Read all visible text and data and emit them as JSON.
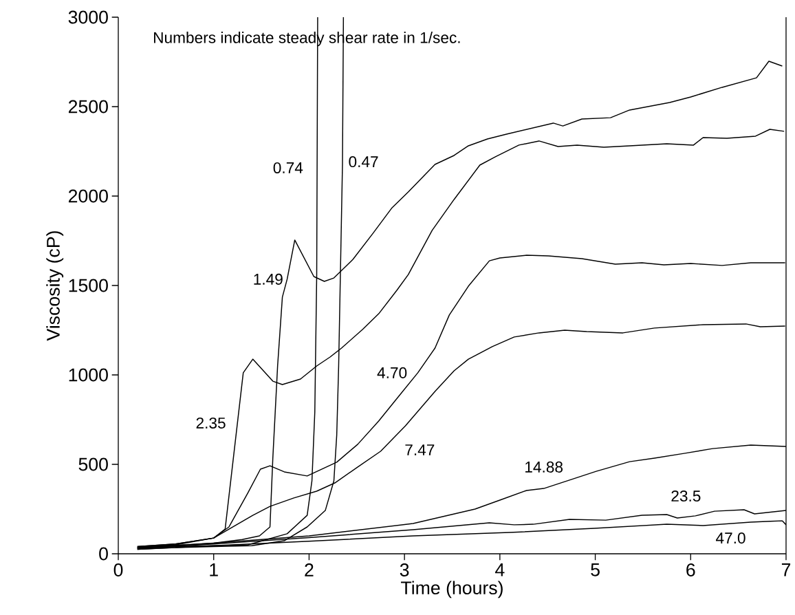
{
  "chart_data": {
    "type": "line",
    "xlabel": "Time (hours)",
    "ylabel": "Viscosity (cP)",
    "annotations": [
      "Numbers indicate steady shear rate in  1/sec."
    ],
    "xlim": [
      0,
      7
    ],
    "ylim": [
      0,
      3000
    ],
    "xticks": [
      0,
      1,
      2,
      3,
      4,
      5,
      6,
      7
    ],
    "yticks": [
      0,
      500,
      1000,
      1500,
      2000,
      2500,
      3000
    ],
    "grid": false,
    "marker": "none",
    "line_style": "solid",
    "series": [
      {
        "name": "0.74",
        "color": "#000000",
        "x": [
          0.2,
          0.6,
          1.0,
          1.36,
          1.77,
          1.98,
          2.03,
          2.06,
          2.08,
          2.09
        ],
        "values": [
          30,
          40,
          45,
          50,
          112,
          215,
          408,
          792,
          1561,
          3000
        ]
      },
      {
        "name": "0.47",
        "color": "#000000",
        "x": [
          0.2,
          0.6,
          1.0,
          1.4,
          1.74,
          1.98,
          2.17,
          2.26,
          2.29,
          2.31,
          2.35,
          2.36
        ],
        "values": [
          25,
          35,
          40,
          45,
          73,
          150,
          242,
          408,
          665,
          1050,
          2177,
          3000
        ]
      },
      {
        "name": "1.49",
        "color": "#000000",
        "x": [
          0.2,
          0.6,
          1.0,
          1.3,
          1.48,
          1.59,
          1.62,
          1.67,
          1.72,
          1.77,
          1.85,
          2.05,
          2.16,
          2.26,
          2.46,
          2.67,
          2.87,
          3.04,
          3.32,
          3.52,
          3.67,
          3.87,
          4.07,
          4.56,
          4.66,
          4.86,
          5.16,
          5.36,
          5.78,
          6.0,
          6.33,
          6.69,
          6.82,
          6.96
        ],
        "values": [
          35,
          45,
          60,
          80,
          100,
          150,
          535,
          1050,
          1435,
          1535,
          1754,
          1550,
          1523,
          1542,
          1646,
          1792,
          1935,
          2023,
          2177,
          2227,
          2281,
          2319,
          2346,
          2408,
          2392,
          2431,
          2438,
          2481,
          2523,
          2554,
          2608,
          2661,
          2754,
          2727
        ]
      },
      {
        "name": "2.35",
        "color": "#000000",
        "x": [
          0.2,
          0.6,
          1.0,
          1.12,
          1.31,
          1.41,
          1.62,
          1.72,
          1.91,
          2.08,
          2.22,
          2.34,
          2.56,
          2.73,
          2.92,
          3.04,
          3.29,
          3.52,
          3.79,
          3.95,
          4.2,
          4.41,
          4.61,
          4.81,
          5.09,
          5.36,
          5.75,
          6.03,
          6.13,
          6.38,
          6.68,
          6.83,
          6.98
        ],
        "values": [
          40,
          55,
          88,
          138,
          1012,
          1088,
          965,
          946,
          977,
          1050,
          1100,
          1150,
          1254,
          1342,
          1473,
          1561,
          1808,
          1981,
          2173,
          2219,
          2285,
          2308,
          2277,
          2285,
          2273,
          2281,
          2292,
          2285,
          2327,
          2323,
          2335,
          2373,
          2362
        ]
      },
      {
        "name": "4.70",
        "color": "#000000",
        "x": [
          0.2,
          0.6,
          1.0,
          1.16,
          1.36,
          1.49,
          1.59,
          1.74,
          1.98,
          2.29,
          2.51,
          2.73,
          2.94,
          3.14,
          3.32,
          3.47,
          3.67,
          3.89,
          4.0,
          4.28,
          4.51,
          4.86,
          5.21,
          5.49,
          5.72,
          6.0,
          6.33,
          6.63,
          6.99
        ],
        "values": [
          40,
          55,
          88,
          150,
          342,
          473,
          492,
          458,
          435,
          512,
          612,
          742,
          881,
          1012,
          1150,
          1335,
          1496,
          1638,
          1654,
          1669,
          1665,
          1650,
          1619,
          1627,
          1615,
          1623,
          1612,
          1627,
          1627
        ]
      },
      {
        "name": "7.47",
        "color": "#000000",
        "x": [
          0.2,
          0.6,
          1.0,
          1.41,
          1.59,
          1.84,
          2.08,
          2.27,
          2.51,
          2.75,
          3.01,
          3.32,
          3.52,
          3.67,
          3.92,
          4.15,
          4.41,
          4.68,
          4.91,
          5.29,
          5.62,
          6.13,
          6.58,
          6.73,
          6.99
        ],
        "values": [
          35,
          50,
          88,
          215,
          265,
          312,
          350,
          396,
          485,
          573,
          715,
          908,
          1023,
          1088,
          1158,
          1212,
          1235,
          1250,
          1242,
          1235,
          1262,
          1281,
          1285,
          1269,
          1273
        ]
      },
      {
        "name": "14.88",
        "color": "#000000",
        "x": [
          0.2,
          1.0,
          2.0,
          3.09,
          3.74,
          4.0,
          4.28,
          4.46,
          4.73,
          5.01,
          5.36,
          5.62,
          5.93,
          6.23,
          6.63,
          7.0
        ],
        "values": [
          35,
          60,
          100,
          169,
          250,
          300,
          354,
          365,
          412,
          461,
          515,
          535,
          561,
          588,
          608,
          600
        ]
      },
      {
        "name": "23.5",
        "color": "#000000",
        "x": [
          0.2,
          1.0,
          2.0,
          3.09,
          3.89,
          4.15,
          4.35,
          4.73,
          5.11,
          5.49,
          5.75,
          5.86,
          6.05,
          6.25,
          6.56,
          6.67,
          7.0
        ],
        "values": [
          30,
          55,
          90,
          135,
          173,
          162,
          165,
          192,
          188,
          215,
          219,
          200,
          212,
          238,
          246,
          223,
          242
        ]
      },
      {
        "name": "47.0",
        "color": "#000000",
        "x": [
          0.2,
          1.0,
          2.0,
          3.09,
          4.1,
          4.99,
          5.75,
          6.13,
          6.63,
          6.96,
          7.0
        ],
        "values": [
          25,
          45,
          70,
          100,
          119,
          142,
          165,
          158,
          177,
          185,
          162
        ]
      }
    ]
  }
}
